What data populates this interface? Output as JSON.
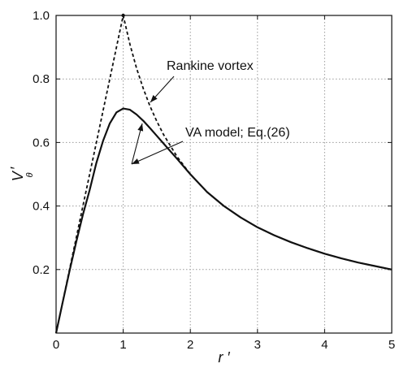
{
  "chart_data": {
    "type": "line",
    "title": "",
    "xlabel": "r ′",
    "ylabel": "V",
    "ylabel_subscript": "θ",
    "ylabel_prime": "′",
    "xlim": [
      0,
      5
    ],
    "ylim": [
      0,
      1.0
    ],
    "xticks": [
      0,
      1,
      2,
      3,
      4,
      5
    ],
    "xtick_labels": [
      "0",
      "1",
      "2",
      "3",
      "4",
      "5"
    ],
    "yticks": [
      0.2,
      0.4,
      0.6,
      0.8,
      1.0
    ],
    "ytick_labels": [
      "0.2",
      "0.4",
      "0.6",
      "0.8",
      "1.0"
    ],
    "grid": true,
    "grid_style": "dotted",
    "series": [
      {
        "name": "Rankine vortex",
        "line_style": "dashed",
        "color": "#111111",
        "x": [
          0,
          0.1,
          0.2,
          0.3,
          0.4,
          0.5,
          0.6,
          0.7,
          0.8,
          0.9,
          1.0,
          1.1,
          1.2,
          1.3,
          1.4,
          1.5,
          1.6,
          1.8,
          2.0,
          2.25,
          2.5,
          2.75,
          3.0,
          3.25,
          3.5,
          3.75,
          4.0,
          4.25,
          4.5,
          4.75,
          5.0
        ],
        "y": [
          0,
          0.1,
          0.2,
          0.3,
          0.4,
          0.5,
          0.6,
          0.7,
          0.8,
          0.9,
          1.0,
          0.909,
          0.833,
          0.769,
          0.714,
          0.667,
          0.625,
          0.556,
          0.5,
          0.444,
          0.4,
          0.364,
          0.333,
          0.308,
          0.286,
          0.267,
          0.25,
          0.235,
          0.222,
          0.211,
          0.2
        ]
      },
      {
        "name": "VA model; Eq.(26)",
        "line_style": "solid",
        "color": "#111111",
        "x": [
          0,
          0.1,
          0.2,
          0.3,
          0.4,
          0.5,
          0.6,
          0.7,
          0.8,
          0.9,
          1.0,
          1.1,
          1.2,
          1.3,
          1.4,
          1.5,
          1.6,
          1.8,
          2.0,
          2.25,
          2.5,
          2.75,
          3.0,
          3.25,
          3.5,
          3.75,
          4.0,
          4.25,
          4.5,
          4.75,
          5.0
        ],
        "y": [
          0,
          0.099,
          0.195,
          0.287,
          0.373,
          0.45,
          0.536,
          0.605,
          0.66,
          0.695,
          0.707,
          0.703,
          0.688,
          0.668,
          0.645,
          0.621,
          0.597,
          0.549,
          0.5,
          0.444,
          0.4,
          0.364,
          0.333,
          0.308,
          0.286,
          0.267,
          0.25,
          0.235,
          0.222,
          0.211,
          0.2
        ]
      }
    ],
    "peak_marker": {
      "x": 1.0,
      "y": 1.0
    },
    "annotations": [
      {
        "text": "Rankine vortex",
        "target_series": 0
      },
      {
        "text": "VA model; Eq.(26)",
        "target_series": 1
      }
    ]
  }
}
